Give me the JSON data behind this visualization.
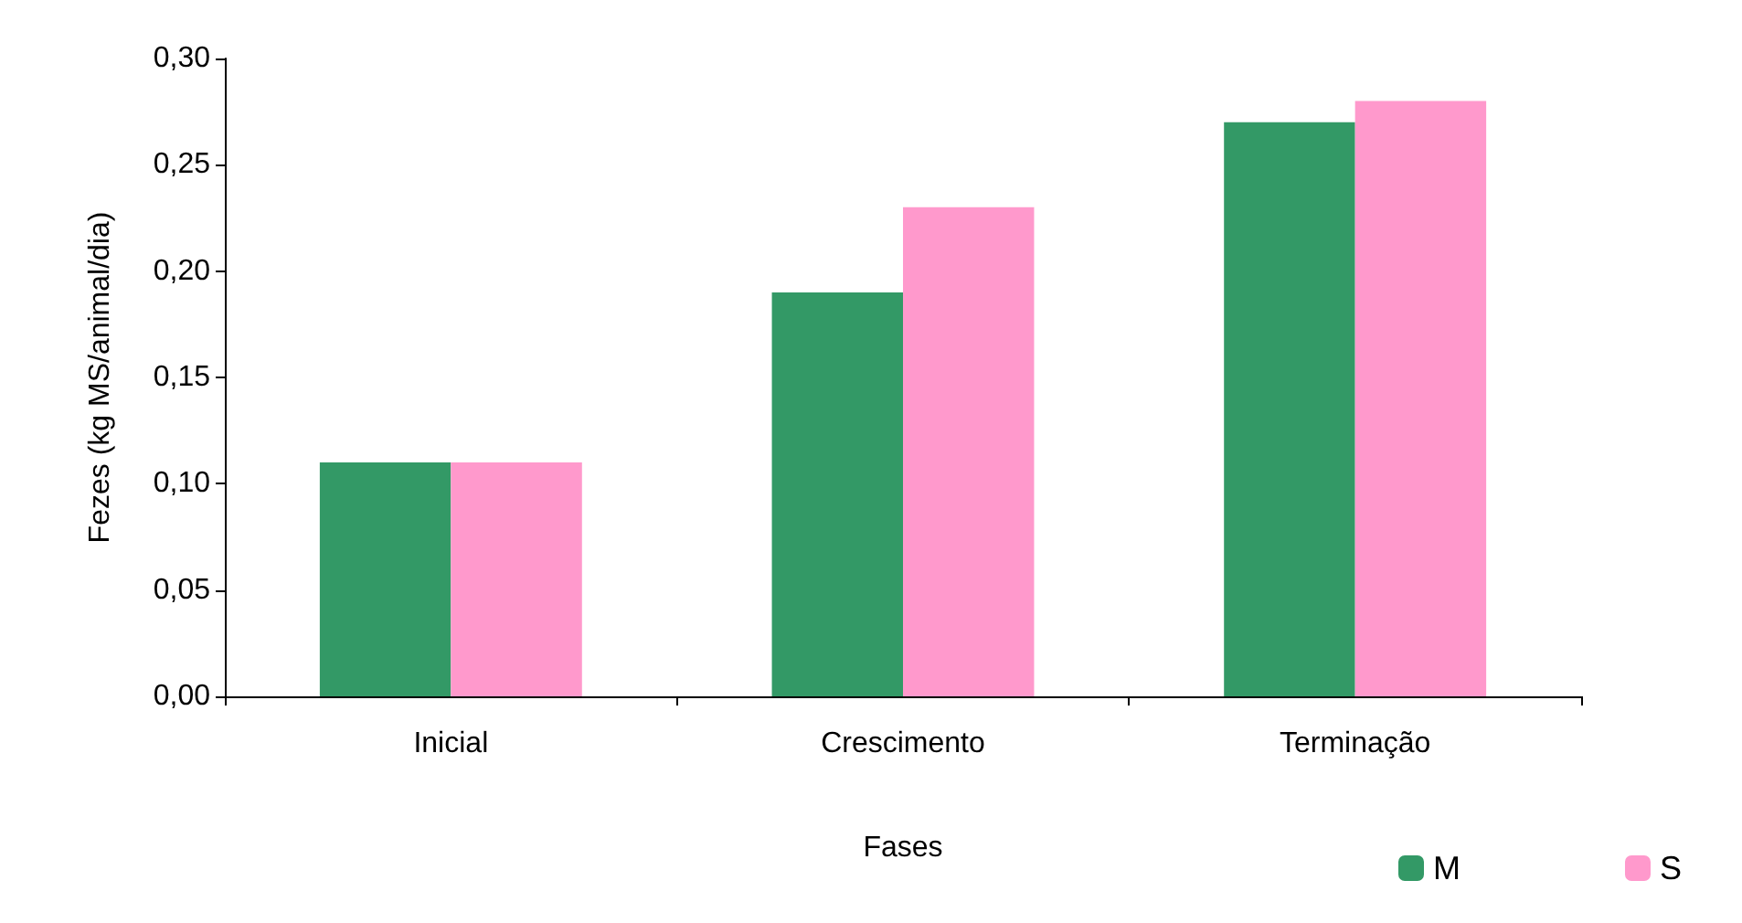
{
  "chart_data": {
    "type": "bar",
    "xlabel": "Fases",
    "ylabel": "Fezes (kg MS/animal/dia)",
    "categories": [
      "Inicial",
      "Crescimento",
      "Terminação"
    ],
    "series": [
      {
        "name": "M",
        "color": "#339966",
        "values": [
          0.11,
          0.19,
          0.27
        ]
      },
      {
        "name": "S",
        "color": "#ff99cc",
        "values": [
          0.11,
          0.23,
          0.28
        ]
      }
    ],
    "ylim": [
      0,
      0.3
    ],
    "yticks": [
      {
        "value": 0,
        "label": "0,00"
      },
      {
        "value": 0.05,
        "label": "0,05"
      },
      {
        "value": 0.1,
        "label": "0,10"
      },
      {
        "value": 0.15,
        "label": "0,15"
      },
      {
        "value": 0.2,
        "label": "0,20"
      },
      {
        "value": 0.25,
        "label": "0,25"
      },
      {
        "value": 0.3,
        "label": "0,30"
      }
    ],
    "grid": false,
    "legend": "bottom right"
  }
}
